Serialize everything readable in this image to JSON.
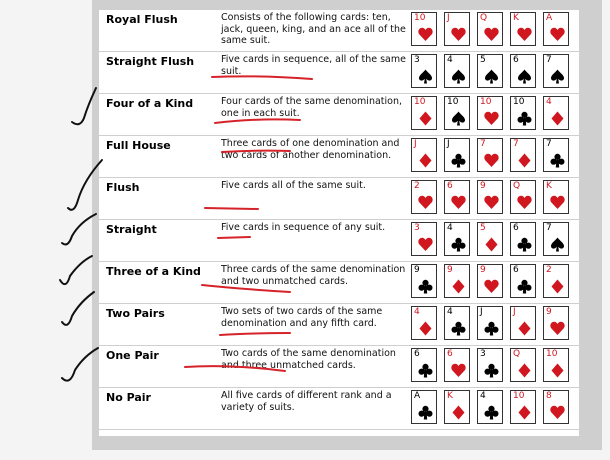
{
  "hands": [
    {
      "name": "Royal Flush",
      "description": "Consists of the following cards: ten, jack, queen, king, and an ace all of the same suit.",
      "cards": [
        {
          "rank": "10",
          "suit": "heart",
          "color": "red"
        },
        {
          "rank": "J",
          "suit": "heart",
          "color": "red"
        },
        {
          "rank": "Q",
          "suit": "heart",
          "color": "red"
        },
        {
          "rank": "K",
          "suit": "heart",
          "color": "red"
        },
        {
          "rank": "A",
          "suit": "heart",
          "color": "red"
        }
      ]
    },
    {
      "name": "Straight Flush",
      "description": "Five cards in sequence, all of the same suit.",
      "cards": [
        {
          "rank": "3",
          "suit": "spade",
          "color": "black"
        },
        {
          "rank": "4",
          "suit": "spade",
          "color": "black"
        },
        {
          "rank": "5",
          "suit": "spade",
          "color": "black"
        },
        {
          "rank": "6",
          "suit": "spade",
          "color": "black"
        },
        {
          "rank": "7",
          "suit": "spade",
          "color": "black"
        }
      ]
    },
    {
      "name": "Four of a Kind",
      "description": "Four cards of the same denomination, one in each suit.",
      "cards": [
        {
          "rank": "10",
          "suit": "diamond",
          "color": "red"
        },
        {
          "rank": "10",
          "suit": "spade",
          "color": "black"
        },
        {
          "rank": "10",
          "suit": "heart",
          "color": "red"
        },
        {
          "rank": "10",
          "suit": "club",
          "color": "black"
        },
        {
          "rank": "4",
          "suit": "diamond",
          "color": "red"
        }
      ]
    },
    {
      "name": "Full House",
      "description": "Three cards of one denomination and two cards of another denomination.",
      "cards": [
        {
          "rank": "J",
          "suit": "diamond",
          "color": "red"
        },
        {
          "rank": "J",
          "suit": "club",
          "color": "black"
        },
        {
          "rank": "7",
          "suit": "heart",
          "color": "red"
        },
        {
          "rank": "7",
          "suit": "diamond",
          "color": "red"
        },
        {
          "rank": "7",
          "suit": "club",
          "color": "black"
        }
      ]
    },
    {
      "name": "Flush",
      "description": "Five cards all of the same suit.",
      "cards": [
        {
          "rank": "2",
          "suit": "heart",
          "color": "red"
        },
        {
          "rank": "6",
          "suit": "heart",
          "color": "red"
        },
        {
          "rank": "9",
          "suit": "heart",
          "color": "red"
        },
        {
          "rank": "Q",
          "suit": "heart",
          "color": "red"
        },
        {
          "rank": "K",
          "suit": "heart",
          "color": "red"
        }
      ]
    },
    {
      "name": "Straight",
      "description": "Five cards in sequence of any suit.",
      "cards": [
        {
          "rank": "3",
          "suit": "heart",
          "color": "red"
        },
        {
          "rank": "4",
          "suit": "club",
          "color": "black"
        },
        {
          "rank": "5",
          "suit": "diamond",
          "color": "red"
        },
        {
          "rank": "6",
          "suit": "club",
          "color": "black"
        },
        {
          "rank": "7",
          "suit": "spade",
          "color": "black"
        }
      ]
    },
    {
      "name": "Three of a Kind",
      "description": "Three cards of the same denomination and two unmatched cards.",
      "cards": [
        {
          "rank": "9",
          "suit": "club",
          "color": "black"
        },
        {
          "rank": "9",
          "suit": "diamond",
          "color": "red"
        },
        {
          "rank": "9",
          "suit": "heart",
          "color": "red"
        },
        {
          "rank": "6",
          "suit": "club",
          "color": "black"
        },
        {
          "rank": "2",
          "suit": "diamond",
          "color": "red"
        }
      ]
    },
    {
      "name": "Two Pairs",
      "description": "Two sets of two cards of the same denomination and any fifth card.",
      "cards": [
        {
          "rank": "4",
          "suit": "diamond",
          "color": "red"
        },
        {
          "rank": "4",
          "suit": "club",
          "color": "black"
        },
        {
          "rank": "J",
          "suit": "club",
          "color": "black"
        },
        {
          "rank": "J",
          "suit": "diamond",
          "color": "red"
        },
        {
          "rank": "9",
          "suit": "heart",
          "color": "red"
        }
      ]
    },
    {
      "name": "One Pair",
      "description": "Two cards of the same denomination and three unmatched cards.",
      "cards": [
        {
          "rank": "6",
          "suit": "club",
          "color": "black"
        },
        {
          "rank": "6",
          "suit": "heart",
          "color": "red"
        },
        {
          "rank": "3",
          "suit": "club",
          "color": "black"
        },
        {
          "rank": "Q",
          "suit": "diamond",
          "color": "red"
        },
        {
          "rank": "10",
          "suit": "diamond",
          "color": "red"
        }
      ]
    },
    {
      "name": "No Pair",
      "description": "All five cards of different rank and a variety of suits.",
      "cards": [
        {
          "rank": "A",
          "suit": "club",
          "color": "black"
        },
        {
          "rank": "K",
          "suit": "diamond",
          "color": "red"
        },
        {
          "rank": "4",
          "suit": "club",
          "color": "black"
        },
        {
          "rank": "10",
          "suit": "diamond",
          "color": "red"
        },
        {
          "rank": "8",
          "suit": "heart",
          "color": "red"
        }
      ]
    }
  ],
  "colors": {
    "red_suit": "#d0161e",
    "black_suit": "#000000",
    "underline_ink": "#d6232a",
    "check_ink": "#111111"
  },
  "annotations": {
    "checkmarks_on": [
      "Four of a Kind",
      "Full House",
      "Flush",
      "Straight",
      "Three of a Kind",
      "Two Pairs",
      "One Pair"
    ],
    "underlined_on": [
      "Straight Flush",
      "Four of a Kind",
      "Full House",
      "Flush",
      "Straight",
      "Three of a Kind",
      "Two Pairs",
      "One Pair"
    ]
  }
}
